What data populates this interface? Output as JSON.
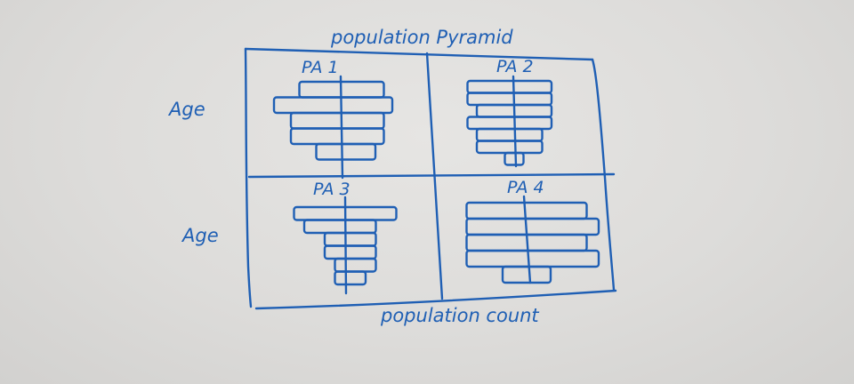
{
  "sketch": {
    "title": "population Pyramid",
    "y_label_top": "Age",
    "y_label_bottom": "Age",
    "x_label": "population count",
    "panels": [
      {
        "id": "pa1",
        "label": "PA 1",
        "bars": [
          {
            "left": 5,
            "right": 5
          },
          {
            "left": 8,
            "right": 6
          },
          {
            "left": 6,
            "right": 5
          },
          {
            "left": 6,
            "right": 5
          },
          {
            "left": 3,
            "right": 4
          }
        ]
      },
      {
        "id": "pa2",
        "label": "PA 2",
        "bars": [
          {
            "left": 5,
            "right": 4
          },
          {
            "left": 5,
            "right": 4
          },
          {
            "left": 4,
            "right": 4
          },
          {
            "left": 5,
            "right": 4
          },
          {
            "left": 4,
            "right": 3
          },
          {
            "left": 4,
            "right": 3
          },
          {
            "left": 1,
            "right": 1
          }
        ]
      },
      {
        "id": "pa3",
        "label": "PA 3",
        "bars": [
          {
            "left": 5,
            "right": 5
          },
          {
            "left": 4,
            "right": 3
          },
          {
            "left": 2,
            "right": 3
          },
          {
            "left": 2,
            "right": 3
          },
          {
            "left": 1,
            "right": 3
          },
          {
            "left": 1,
            "right": 2
          }
        ]
      },
      {
        "id": "pa4",
        "label": "PA 4",
        "bars": [
          {
            "left": 5,
            "right": 5
          },
          {
            "left": 5,
            "right": 6
          },
          {
            "left": 5,
            "right": 5
          },
          {
            "left": 5,
            "right": 6
          },
          {
            "left": 2,
            "right": 2
          }
        ]
      }
    ],
    "ink_color": "#1f5fb4"
  }
}
